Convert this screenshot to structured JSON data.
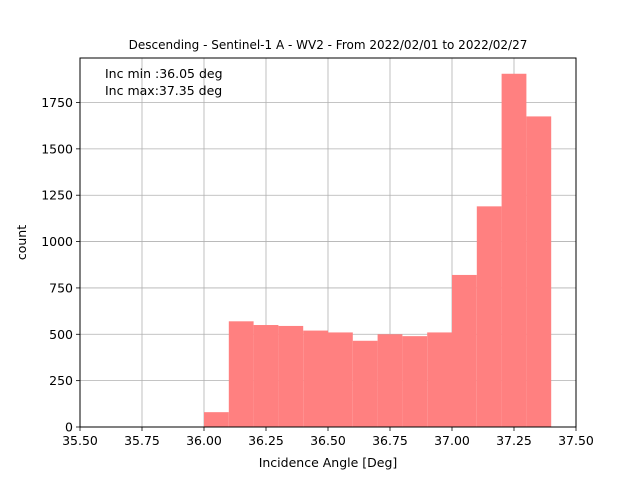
{
  "chart_data": {
    "type": "bar",
    "title": "Descending - Sentinel-1 A - WV2 - From 2022/02/01 to 2022/02/27",
    "xlabel": "Incidence Angle [Deg]",
    "ylabel": "count",
    "annotations": [
      "Inc min :36.05 deg",
      "Inc max:37.35 deg"
    ],
    "xlim": [
      35.5,
      37.5
    ],
    "ylim": [
      0,
      1990
    ],
    "x_ticks": [
      35.5,
      35.75,
      36.0,
      36.25,
      36.5,
      36.75,
      37.0,
      37.25,
      37.5
    ],
    "x_tick_labels": [
      "35.50",
      "35.75",
      "36.00",
      "36.25",
      "36.50",
      "36.75",
      "37.00",
      "37.25",
      "37.50"
    ],
    "y_ticks": [
      0,
      250,
      500,
      750,
      1000,
      1250,
      1500,
      1750
    ],
    "y_tick_labels": [
      "0",
      "250",
      "500",
      "750",
      "1000",
      "1250",
      "1500",
      "1750"
    ],
    "grid": true,
    "bar_color": "#ff8080",
    "bins": [
      {
        "x0": 36.0,
        "x1": 36.1,
        "value": 80
      },
      {
        "x0": 36.1,
        "x1": 36.2,
        "value": 570
      },
      {
        "x0": 36.2,
        "x1": 36.3,
        "value": 550
      },
      {
        "x0": 36.3,
        "x1": 36.4,
        "value": 545
      },
      {
        "x0": 36.4,
        "x1": 36.5,
        "value": 520
      },
      {
        "x0": 36.5,
        "x1": 36.6,
        "value": 510
      },
      {
        "x0": 36.6,
        "x1": 36.7,
        "value": 465
      },
      {
        "x0": 36.7,
        "x1": 36.8,
        "value": 500
      },
      {
        "x0": 36.8,
        "x1": 36.9,
        "value": 490
      },
      {
        "x0": 36.9,
        "x1": 37.0,
        "value": 510
      },
      {
        "x0": 37.0,
        "x1": 37.1,
        "value": 820
      },
      {
        "x0": 37.1,
        "x1": 37.2,
        "value": 1190
      },
      {
        "x0": 37.2,
        "x1": 37.3,
        "value": 1905
      },
      {
        "x0": 37.3,
        "x1": 37.4,
        "value": 1675
      }
    ]
  }
}
